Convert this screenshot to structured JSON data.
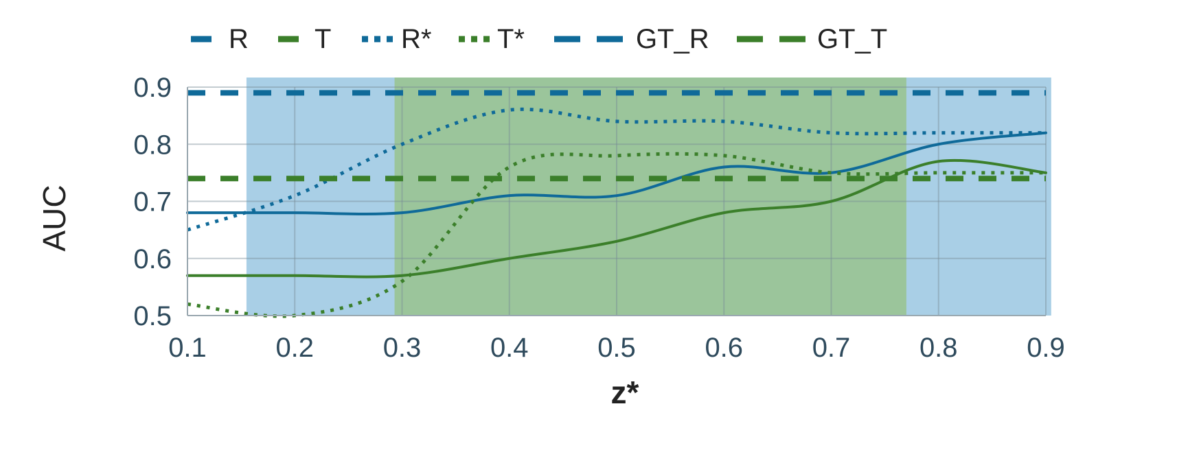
{
  "chart_data": {
    "type": "line",
    "xlabel": "z*",
    "ylabel": "AUC",
    "xlim": [
      0.1,
      0.9
    ],
    "ylim": [
      0.5,
      0.9
    ],
    "xticks": [
      "0.1",
      "0.2",
      "0.3",
      "0.4",
      "0.5",
      "0.6",
      "0.7",
      "0.8",
      "0.9"
    ],
    "yticks": [
      "0.5",
      "0.6",
      "0.7",
      "0.8",
      "0.9"
    ],
    "grid": true,
    "legend_position": "top",
    "shaded_regions": [
      {
        "x0": 0.155,
        "x1": 0.905,
        "color": "#a9cfe6"
      },
      {
        "x0": 0.293,
        "x1": 0.77,
        "color": "#9bc59b"
      }
    ],
    "series": [
      {
        "name": "R",
        "style": "solid",
        "color": "#0f6a99",
        "x": [
          0.1,
          0.2,
          0.3,
          0.4,
          0.5,
          0.6,
          0.7,
          0.8,
          0.9
        ],
        "y": [
          0.68,
          0.68,
          0.68,
          0.71,
          0.71,
          0.76,
          0.75,
          0.8,
          0.82
        ]
      },
      {
        "name": "T",
        "style": "solid",
        "color": "#3b7f2a",
        "x": [
          0.1,
          0.2,
          0.3,
          0.4,
          0.5,
          0.6,
          0.7,
          0.8,
          0.9
        ],
        "y": [
          0.57,
          0.57,
          0.57,
          0.6,
          0.63,
          0.68,
          0.7,
          0.77,
          0.75
        ]
      },
      {
        "name": "R*",
        "style": "dotted",
        "color": "#0f6a99",
        "x": [
          0.1,
          0.2,
          0.3,
          0.4,
          0.5,
          0.6,
          0.7,
          0.8,
          0.9
        ],
        "y": [
          0.65,
          0.71,
          0.8,
          0.86,
          0.84,
          0.84,
          0.82,
          0.82,
          0.82
        ]
      },
      {
        "name": "T*",
        "style": "dotted",
        "color": "#3b7f2a",
        "x": [
          0.1,
          0.2,
          0.3,
          0.4,
          0.5,
          0.6,
          0.7,
          0.8,
          0.9
        ],
        "y": [
          0.52,
          0.5,
          0.56,
          0.76,
          0.78,
          0.78,
          0.75,
          0.75,
          0.75
        ]
      },
      {
        "name": "GT_R",
        "style": "dashed",
        "color": "#0f6a99",
        "x": [
          0.1,
          0.9
        ],
        "y": [
          0.89,
          0.89
        ]
      },
      {
        "name": "GT_T",
        "style": "dashed",
        "color": "#3b7f2a",
        "x": [
          0.1,
          0.9
        ],
        "y": [
          0.74,
          0.74
        ]
      }
    ]
  }
}
